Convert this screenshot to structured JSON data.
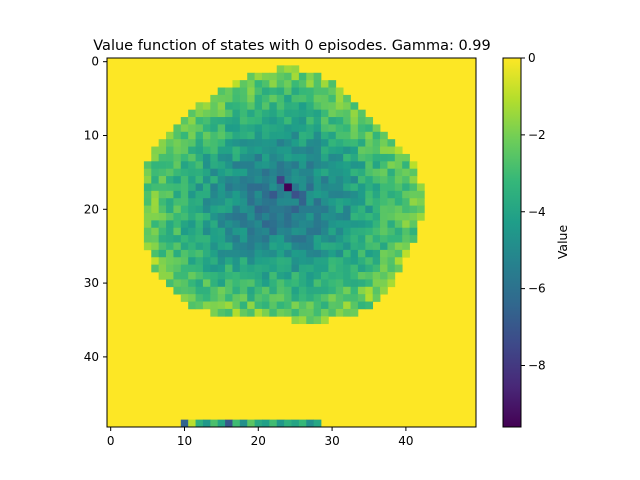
{
  "chart_data": {
    "type": "heatmap",
    "title": "Value function of states with 0 episodes. Gamma: 0.99",
    "grid_size": [
      50,
      50
    ],
    "x_ticks": [
      0,
      10,
      20,
      30,
      40
    ],
    "y_ticks": [
      0,
      10,
      20,
      30,
      40
    ],
    "colorbar": {
      "label": "Value",
      "colormap": "viridis",
      "vmin": -9.6,
      "vmax": 0,
      "ticks": [
        0,
        -2,
        -4,
        -6,
        -8
      ],
      "tick_labels": [
        "0",
        "−2",
        "−4",
        "−6",
        "−8"
      ]
    },
    "background_value": 0,
    "region": {
      "description_values": "approximate circular region of non-zero values",
      "center": [
        23,
        19
      ],
      "radii": [
        19,
        17
      ],
      "edge_value": -2.0,
      "center_value": -6.0,
      "min_cell": {
        "x": 24,
        "y": 17,
        "value": -9.6
      }
    },
    "bottom_row": {
      "y": 49,
      "x_start": 10,
      "x_end": 28,
      "values": [
        -6.5,
        -1,
        -3.5,
        -4.5,
        -2.8,
        -4,
        -7,
        -3,
        -4.8,
        -2.5,
        -3.8,
        -4.2,
        -3,
        -4.5,
        -3.5,
        -4,
        -3.2,
        -4.8,
        -3.9
      ]
    }
  }
}
